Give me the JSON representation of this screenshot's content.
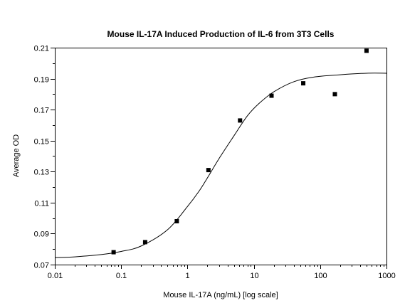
{
  "chart_data": {
    "type": "scatter",
    "title": "Mouse IL-17A Induced Production of IL-6 from 3T3 Cells",
    "xlabel": "Mouse IL-17A (ng/mL) [log scale]",
    "ylabel": "Average OD",
    "x_scale": "log",
    "xlim": [
      0.01,
      1000
    ],
    "ylim": [
      0.07,
      0.21
    ],
    "x_ticks": [
      0.01,
      0.1,
      1,
      10,
      100,
      1000
    ],
    "x_tick_labels": [
      "0.01",
      "0.1",
      "1",
      "10",
      "100",
      "1000"
    ],
    "y_ticks": [
      0.07,
      0.09,
      0.11,
      0.13,
      0.15,
      0.17,
      0.19,
      0.21
    ],
    "y_tick_labels": [
      "0.07",
      "0.09",
      "0.11",
      "0.13",
      "0.15",
      "0.17",
      "0.19",
      "0.21"
    ],
    "grid": false,
    "legend": "none",
    "series": [
      {
        "type": "scatter",
        "x": [
          0.077,
          0.23,
          0.69,
          2.07,
          6.2,
          18.5,
          55.6,
          166.7,
          500
        ],
        "y": [
          0.078,
          0.0845,
          0.098,
          0.131,
          0.163,
          0.179,
          0.187,
          0.18,
          0.208
        ]
      },
      {
        "type": "line",
        "x": [
          0.01,
          0.02,
          0.05,
          0.1,
          0.2,
          0.5,
          1,
          1.5,
          2,
          3,
          5,
          8,
          12,
          20,
          40,
          80,
          200,
          500,
          1000
        ],
        "y": [
          0.0745,
          0.075,
          0.0765,
          0.0785,
          0.082,
          0.0925,
          0.1075,
          0.1175,
          0.126,
          0.1385,
          0.153,
          0.166,
          0.174,
          0.1815,
          0.188,
          0.191,
          0.1925,
          0.1935,
          0.1935
        ]
      }
    ]
  }
}
